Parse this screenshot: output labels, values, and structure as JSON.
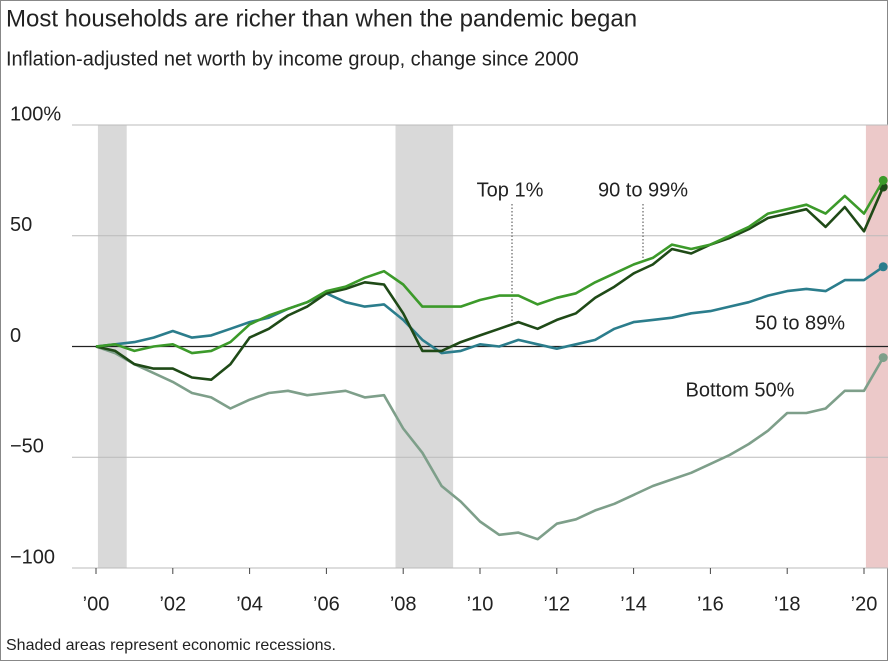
{
  "chart_data": {
    "type": "line",
    "title": "Most households are richer than when the pandemic began",
    "subtitle": "Inflation-adjusted net worth by income group, change since 2000",
    "footnote": "Shaded areas represent economic recessions.",
    "x": [
      2000,
      2000.5,
      2001,
      2001.5,
      2002,
      2002.5,
      2003,
      2003.5,
      2004,
      2004.5,
      2005,
      2005.5,
      2006,
      2006.5,
      2007,
      2007.5,
      2008,
      2008.5,
      2009,
      2009.5,
      2010,
      2010.5,
      2011,
      2011.5,
      2012,
      2012.5,
      2013,
      2013.5,
      2014,
      2014.5,
      2015,
      2015.5,
      2016,
      2016.5,
      2017,
      2017.5,
      2018,
      2018.5,
      2019,
      2019.5,
      2020,
      2020.5
    ],
    "series": [
      {
        "name": "Top 1%",
        "color": "#1f4a17",
        "values": [
          0,
          -2,
          -8,
          -10,
          -10,
          -14,
          -15,
          -8,
          4,
          8,
          14,
          18,
          24,
          26,
          29,
          28,
          15,
          -2,
          -2,
          2,
          5,
          8,
          11,
          8,
          12,
          15,
          22,
          27,
          33,
          37,
          44,
          42,
          46,
          49,
          53,
          58,
          60,
          62,
          54,
          63,
          52,
          72
        ]
      },
      {
        "name": "90 to 99%",
        "color": "#3c9a2a",
        "values": [
          0,
          1,
          -2,
          0,
          1,
          -3,
          -2,
          2,
          10,
          14,
          17,
          20,
          25,
          27,
          31,
          34,
          28,
          18,
          18,
          18,
          21,
          23,
          23,
          19,
          22,
          24,
          29,
          33,
          37,
          40,
          46,
          44,
          46,
          50,
          54,
          60,
          62,
          64,
          60,
          68,
          60,
          75
        ]
      },
      {
        "name": "50 to 89%",
        "color": "#2b7d8c",
        "values": [
          0,
          1,
          2,
          4,
          7,
          4,
          5,
          8,
          11,
          13,
          17,
          20,
          24,
          20,
          18,
          19,
          12,
          3,
          -3,
          -2,
          1,
          0,
          3,
          1,
          -1,
          1,
          3,
          8,
          11,
          12,
          13,
          15,
          16,
          18,
          20,
          23,
          25,
          26,
          25,
          30,
          30,
          36
        ]
      },
      {
        "name": "Bottom 50%",
        "color": "#7e9f8a",
        "values": [
          0,
          -3,
          -8,
          -12,
          -16,
          -21,
          -23,
          -28,
          -24,
          -21,
          -20,
          -22,
          -21,
          -20,
          -23,
          -22,
          -37,
          -48,
          -63,
          -70,
          -79,
          -85,
          -84,
          -87,
          -80,
          -78,
          -74,
          -71,
          -67,
          -63,
          -60,
          -57,
          -53,
          -49,
          -44,
          -38,
          -30,
          -30,
          -28,
          -20,
          -20,
          -5
        ]
      }
    ],
    "recessions": [
      {
        "start": 2000.05,
        "end": 2000.8,
        "color": "#d9d9d9"
      },
      {
        "start": 2007.8,
        "end": 2009.3,
        "color": "#d9d9d9"
      },
      {
        "start": 2020.05,
        "end": 2020.625,
        "color": "#ecc9c9"
      }
    ],
    "xlim": [
      2000,
      2020.625
    ],
    "xticks": [
      {
        "value": 2000,
        "label": "’00"
      },
      {
        "value": 2002,
        "label": "’02"
      },
      {
        "value": 2004,
        "label": "’04"
      },
      {
        "value": 2006,
        "label": "’06"
      },
      {
        "value": 2008,
        "label": "’08"
      },
      {
        "value": 2010,
        "label": "’10"
      },
      {
        "value": 2012,
        "label": "’12"
      },
      {
        "value": 2014,
        "label": "’14"
      },
      {
        "value": 2016,
        "label": "’16"
      },
      {
        "value": 2018,
        "label": "’18"
      },
      {
        "value": 2020,
        "label": "’20"
      }
    ],
    "ylim": [
      -100,
      100
    ],
    "yticks": [
      {
        "value": 100,
        "label": "100%"
      },
      50,
      0,
      {
        "value": -50,
        "label": "−50"
      },
      {
        "value": -100,
        "label": "−100"
      }
    ],
    "grid": true
  }
}
